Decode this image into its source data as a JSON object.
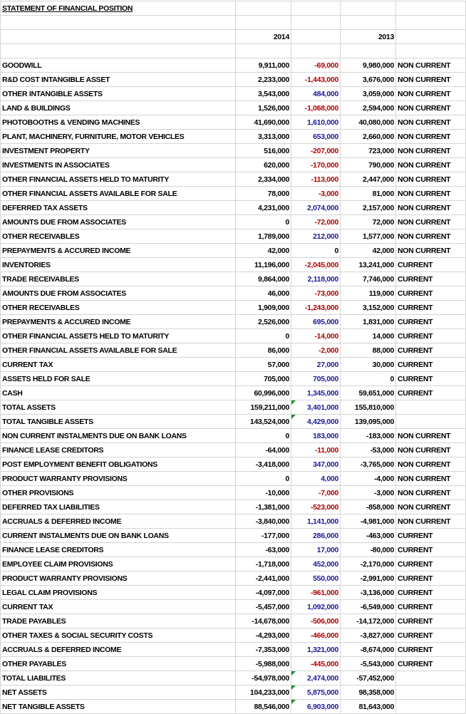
{
  "header": {
    "title": "STATEMENT OF FINANCIAL POSITION",
    "columns": [
      "2014",
      "2013"
    ]
  },
  "rows": [
    {
      "label": "GOODWILL",
      "y2014": "9,911,000",
      "change": "-69,000",
      "y2013": "9,980,000",
      "class": "NON CURRENT"
    },
    {
      "label": "R&D COST INTANGIBLE ASSET",
      "y2014": "2,233,000",
      "change": "-1,443,000",
      "y2013": "3,676,000",
      "class": "NON CURRENT"
    },
    {
      "label": "OTHER INTANGIBLE ASSETS",
      "y2014": "3,543,000",
      "change": "484,000",
      "y2013": "3,059,000",
      "class": "NON CURRENT"
    },
    {
      "label": "LAND & BUILDINGS",
      "y2014": "1,526,000",
      "change": "-1,068,000",
      "y2013": "2,594,000",
      "class": "NON CURRENT"
    },
    {
      "label": "PHOTOBOOTHS & VENDING MACHINES",
      "y2014": "41,690,000",
      "change": "1,610,000",
      "y2013": "40,080,000",
      "class": "NON CURRENT"
    },
    {
      "label": "PLANT, MACHINERY, FURNITURE, MOTOR VEHICLES",
      "y2014": "3,313,000",
      "change": "653,000",
      "y2013": "2,660,000",
      "class": "NON CURRENT"
    },
    {
      "label": "INVESTMENT PROPERTY",
      "y2014": "516,000",
      "change": "-207,000",
      "y2013": "723,000",
      "class": "NON CURRENT"
    },
    {
      "label": "INVESTMENTS IN ASSOCIATES",
      "y2014": "620,000",
      "change": "-170,000",
      "y2013": "790,000",
      "class": "NON CURRENT"
    },
    {
      "label": "OTHER FINANCIAL ASSETS HELD TO MATURITY",
      "y2014": "2,334,000",
      "change": "-113,000",
      "y2013": "2,447,000",
      "class": "NON CURRENT"
    },
    {
      "label": "OTHER FINANCIAL ASSETS AVAILABLE FOR SALE",
      "y2014": "78,000",
      "change": "-3,000",
      "y2013": "81,000",
      "class": "NON CURRENT"
    },
    {
      "label": "DEFERRED TAX ASSETS",
      "y2014": "4,231,000",
      "change": "2,074,000",
      "y2013": "2,157,000",
      "class": "NON CURRENT"
    },
    {
      "label": "AMOUNTS DUE FROM ASSOCIATES",
      "y2014": "0",
      "change": "-72,000",
      "y2013": "72,000",
      "class": "NON CURRENT"
    },
    {
      "label": "OTHER RECEIVABLES",
      "y2014": "1,789,000",
      "change": "212,000",
      "y2013": "1,577,000",
      "class": "NON CURRENT"
    },
    {
      "label": "PREPAYMENTS & ACCURED INCOME",
      "y2014": "42,000",
      "change": "0",
      "y2013": "42,000",
      "class": "NON CURRENT"
    },
    {
      "label": "INVENTORIES",
      "y2014": "11,196,000",
      "change": "-2,045,000",
      "y2013": "13,241,000",
      "class": "CURRENT"
    },
    {
      "label": "TRADE RECEIVABLES",
      "y2014": "9,864,000",
      "change": "2,118,000",
      "y2013": "7,746,000",
      "class": "CURRENT"
    },
    {
      "label": "AMOUNTS DUE FROM ASSOCIATES",
      "y2014": "46,000",
      "change": "-73,000",
      "y2013": "119,000",
      "class": "CURRENT"
    },
    {
      "label": "OTHER RECEIVABLES",
      "y2014": "1,909,000",
      "change": "-1,243,000",
      "y2013": "3,152,000",
      "class": "CURRENT"
    },
    {
      "label": "PREPAYMENTS & ACCURED INCOME",
      "y2014": "2,526,000",
      "change": "695,000",
      "y2013": "1,831,000",
      "class": "CURRENT"
    },
    {
      "label": "OTHER FINANCIAL ASSETS HELD TO MATURITY",
      "y2014": "0",
      "change": "-14,000",
      "y2013": "14,000",
      "class": "CURRENT"
    },
    {
      "label": "OTHER FINANCIAL ASSETS AVAILABLE FOR SALE",
      "y2014": "86,000",
      "change": "-2,000",
      "y2013": "88,000",
      "class": "CURRENT"
    },
    {
      "label": "CURRENT TAX",
      "y2014": "57,000",
      "change": "27,000",
      "y2013": "30,000",
      "class": "CURRENT"
    },
    {
      "label": "ASSETS HELD FOR SALE",
      "y2014": "705,000",
      "change": "705,000",
      "y2013": "0",
      "class": "CURRENT"
    },
    {
      "label": "CASH",
      "y2014": "60,996,000",
      "change": "1,345,000",
      "y2013": "59,651,000",
      "class": "CURRENT"
    },
    {
      "label": "TOTAL ASSETS",
      "y2014": "159,211,000",
      "change": "3,401,000",
      "y2013": "155,810,000",
      "flag": true
    },
    {
      "label": "TOTAL TANGIBLE ASSETS",
      "y2014": "143,524,000",
      "change": "4,429,000",
      "y2013": "139,095,000",
      "flag": true
    },
    {
      "label": "NON CURRENT INSTALMENTS DUE ON BANK LOANS",
      "y2014": "0",
      "change": "183,000",
      "y2013": "-183,000",
      "class": "NON CURRENT"
    },
    {
      "label": "FINANCE LEASE CREDITORS",
      "y2014": "-64,000",
      "change": "-11,000",
      "y2013": "-53,000",
      "class": "NON CURRENT"
    },
    {
      "label": "POST EMPLOYMENT BENEFIT OBLIGATIONS",
      "y2014": "-3,418,000",
      "change": "347,000",
      "y2013": "-3,765,000",
      "class": "NON CURRENT"
    },
    {
      "label": "PRODUCT WARRANTY PROVISIONS",
      "y2014": "0",
      "change": "4,000",
      "y2013": "-4,000",
      "class": "NON CURRENT"
    },
    {
      "label": "OTHER PROVISIONS",
      "y2014": "-10,000",
      "change": "-7,000",
      "y2013": "-3,000",
      "class": "NON CURRENT"
    },
    {
      "label": "DEFERRED TAX LIABILITIES",
      "y2014": "-1,381,000",
      "change": "-523,000",
      "y2013": "-858,000",
      "class": "NON CURRENT"
    },
    {
      "label": "ACCRUALS & DEFERRED INCOME",
      "y2014": "-3,840,000",
      "change": "1,141,000",
      "y2013": "-4,981,000",
      "class": "NON CURRENT"
    },
    {
      "label": "CURRENT INSTALMENTS DUE ON BANK LOANS",
      "y2014": "-177,000",
      "change": "286,000",
      "y2013": "-463,000",
      "class": "CURRENT"
    },
    {
      "label": "FINANCE LEASE CREDITORS",
      "y2014": "-63,000",
      "change": "17,000",
      "y2013": "-80,000",
      "class": "CURRENT"
    },
    {
      "label": "EMPLOYEE CLAIM PROVISIONS",
      "y2014": "-1,718,000",
      "change": "452,000",
      "y2013": "-2,170,000",
      "class": "CURRENT"
    },
    {
      "label": "PRODUCT WARRANTY PROVISIONS",
      "y2014": "-2,441,000",
      "change": "550,000",
      "y2013": "-2,991,000",
      "class": "CURRENT"
    },
    {
      "label": "LEGAL CLAIM PROVISIONS",
      "y2014": "-4,097,000",
      "change": "-961,000",
      "y2013": "-3,136,000",
      "class": "CURRENT"
    },
    {
      "label": "CURRENT TAX",
      "y2014": "-5,457,000",
      "change": "1,092,000",
      "y2013": "-6,549,000",
      "class": "CURRENT"
    },
    {
      "label": "TRADE PAYABLES",
      "y2014": "-14,678,000",
      "change": "-506,000",
      "y2013": "-14,172,000",
      "class": "CURRENT"
    },
    {
      "label": "OTHER TAXES & SOCIAL SECURITY COSTS",
      "y2014": "-4,293,000",
      "change": "-466,000",
      "y2013": "-3,827,000",
      "class": "CURRENT"
    },
    {
      "label": "ACCRUALS & DEFERRED INCOME",
      "y2014": "-7,353,000",
      "change": "1,321,000",
      "y2013": "-8,674,000",
      "class": "CURRENT"
    },
    {
      "label": "OTHER PAYABLES",
      "y2014": "-5,988,000",
      "change": "-445,000",
      "y2013": "-5,543,000",
      "class": "CURRENT"
    },
    {
      "label": "TOTAL LIABILITES",
      "y2014": "-54,978,000",
      "change": "2,474,000",
      "y2013": "-57,452,000",
      "flag": true
    },
    {
      "label": "NET ASSETS",
      "y2014": "104,233,000",
      "change": "5,875,000",
      "y2013": "98,358,000",
      "flag": true
    },
    {
      "label": "NET TANGIBLE ASSETS",
      "y2014": "88,546,000",
      "change": "6,903,000",
      "y2013": "81,643,000",
      "flag": true
    }
  ]
}
